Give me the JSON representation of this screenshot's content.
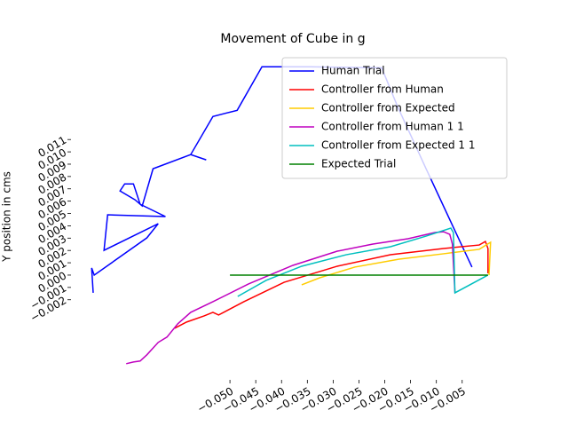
{
  "chart_data": {
    "type": "line",
    "title": "Movement of Cube in g",
    "y_label": "Y position in cms",
    "xlim": [
      -0.0808,
      0.0045
    ],
    "ylim": [
      -0.0085,
      0.018
    ],
    "xticks": [
      {
        "value": -0.05,
        "label": "−0.050"
      },
      {
        "value": -0.045,
        "label": "−0.045"
      },
      {
        "value": -0.04,
        "label": "−0.040"
      },
      {
        "value": -0.035,
        "label": "−0.035"
      },
      {
        "value": -0.03,
        "label": "−0.030"
      },
      {
        "value": -0.025,
        "label": "−0.025"
      },
      {
        "value": -0.02,
        "label": "−0.020"
      },
      {
        "value": -0.015,
        "label": "−0.015"
      },
      {
        "value": -0.01,
        "label": "−0.010"
      },
      {
        "value": -0.005,
        "label": "−0.005"
      }
    ],
    "yticks": [
      {
        "value": -0.002,
        "label": "−0.002"
      },
      {
        "value": -0.001,
        "label": "−0.001"
      },
      {
        "value": 0,
        "label": "0.000"
      },
      {
        "value": 0.001,
        "label": "0.001"
      },
      {
        "value": 0.002,
        "label": "0.002"
      },
      {
        "value": 0.003,
        "label": "0.003"
      },
      {
        "value": 0.004,
        "label": "0.004"
      },
      {
        "value": 0.005,
        "label": "0.005"
      },
      {
        "value": 0.006,
        "label": "0.006"
      },
      {
        "value": 0.007,
        "label": "0.007"
      },
      {
        "value": 0.008,
        "label": "0.008"
      },
      {
        "value": 0.009,
        "label": "0.009"
      },
      {
        "value": 0.01,
        "label": "0.010"
      },
      {
        "value": 0.011,
        "label": "0.011"
      }
    ],
    "legend": "upper right",
    "series": [
      {
        "name": "Human Trial",
        "color": "#0000ff",
        "x": [
          -0.0765,
          -0.0768,
          -0.0763,
          -0.0661,
          -0.0639,
          -0.0744,
          -0.0737,
          -0.0625,
          -0.0674,
          -0.0687,
          -0.0704,
          -0.0713,
          -0.0684,
          -0.067,
          -0.0649,
          -0.0576,
          -0.0546,
          -0.0576,
          -0.0533,
          -0.0486,
          -0.0438,
          -0.0344,
          -0.0206,
          -0.0175,
          -0.012,
          -0.0064,
          -0.0031
        ],
        "values": [
          -0.00144,
          0.00058,
          0,
          0.00302,
          0.00417,
          0.00201,
          0.00489,
          0.00475,
          0.00575,
          0.0074,
          0.0074,
          0.00683,
          0.00611,
          0.00561,
          0.00863,
          0.00978,
          0.00935,
          0.00978,
          0.01287,
          0.01337,
          0.0169,
          0.0169,
          0.01682,
          0.01366,
          0.00863,
          0.0036,
          0.00065
        ]
      },
      {
        "name": "Controller from Human",
        "color": "#ff0000",
        "x": [
          -0.0607,
          -0.0584,
          -0.055,
          -0.0533,
          -0.0522,
          -0.0473,
          -0.0395,
          -0.0292,
          -0.0189,
          -0.0086,
          -0.0017,
          -0.0005,
          0.0,
          0.0
        ],
        "values": [
          -0.00431,
          -0.00381,
          -0.00331,
          -0.00302,
          -0.00324,
          -0.00216,
          -0.00058,
          0.00072,
          0.00165,
          0.00216,
          0.00244,
          0.00273,
          0.00216,
          0.00014
        ]
      },
      {
        "name": "Controller from Expected",
        "color": "#ffcc00",
        "x": [
          -0.0361,
          -0.0326,
          -0.0258,
          -0.0172,
          -0.0086,
          -0.0017,
          0.0005,
          0.0002
        ],
        "values": [
          -0.00079,
          -0.00022,
          0.00065,
          0.00129,
          0.00173,
          0.00209,
          0.00266,
          0
        ]
      },
      {
        "name": "Controller from Human 1 1",
        "color": "#bf00bf",
        "x": [
          -0.0701,
          -0.0687,
          -0.0674,
          -0.0661,
          -0.0639,
          -0.0622,
          -0.0601,
          -0.0576,
          -0.0533,
          -0.0464,
          -0.0378,
          -0.0292,
          -0.0223,
          -0.0155,
          -0.0103,
          -0.0086,
          -0.0074,
          -0.0069,
          -0.0064
        ],
        "values": [
          -0.00719,
          -0.00705,
          -0.00697,
          -0.00647,
          -0.00546,
          -0.00503,
          -0.00395,
          -0.00302,
          -0.00216,
          -0.00072,
          0.00079,
          0.00194,
          0.00252,
          0.00295,
          0.00345,
          0.00352,
          0.00331,
          0.00252,
          -0.00144
        ]
      },
      {
        "name": "Controller from Expected 1 1",
        "color": "#00bfbf",
        "x": [
          -0.0485,
          -0.043,
          -0.0361,
          -0.0275,
          -0.0189,
          -0.012,
          -0.0072,
          -0.0067,
          -0.0064,
          0.0
        ],
        "values": [
          -0.00173,
          -0.00043,
          0.00072,
          0.00165,
          0.0023,
          0.00316,
          0.00381,
          0.00345,
          -0.00144,
          0
        ]
      },
      {
        "name": "Expected Trial",
        "color": "#008000",
        "x": [
          -0.05,
          0.0
        ],
        "values": [
          0,
          0
        ]
      }
    ]
  }
}
